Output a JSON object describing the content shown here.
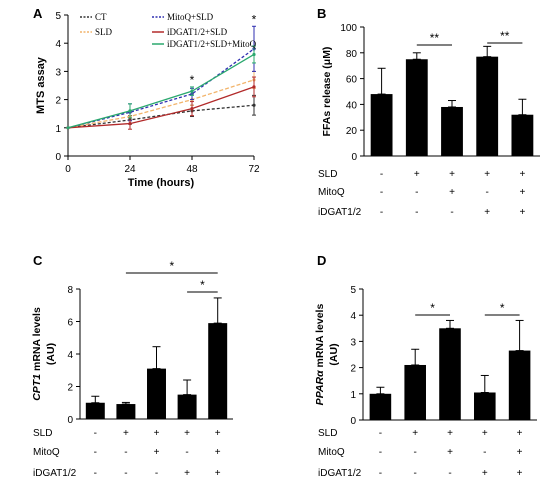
{
  "colors": {
    "ct": "#333333",
    "sld": "#f2b46b",
    "mitoq_sld": "#2f2fb0",
    "idgat_sld": "#b22a2a",
    "idgat_sld_mitoq": "#2aa86e",
    "bar": "#000000"
  },
  "chart_data": [
    {
      "panel": "A",
      "type": "line",
      "ylabel": "MTS assay",
      "xlabel": "Time (hours)",
      "x": [
        0,
        24,
        48,
        72
      ],
      "xticks": [
        "0",
        "24",
        "48",
        "72"
      ],
      "ylim": [
        0,
        5
      ],
      "yticks": [
        "0",
        "1",
        "2",
        "3",
        "4",
        "5"
      ],
      "xlim": [
        0,
        72
      ],
      "legend": {
        "placement": "top",
        "entries": [
          "CT",
          "SLD",
          "MitoQ+SLD",
          "iDGAT1/2+SLD",
          "iDGAT1/2+SLD+MitoQ"
        ]
      },
      "series": [
        {
          "name": "CT",
          "values": [
            1.0,
            1.28,
            1.6,
            1.8
          ],
          "err": [
            0,
            0.15,
            0.2,
            0.35
          ]
        },
        {
          "name": "SLD",
          "values": [
            1.0,
            1.4,
            2.0,
            2.7
          ],
          "err": [
            0,
            0.15,
            0.2,
            0.3
          ]
        },
        {
          "name": "MitoQ+SLD",
          "values": [
            1.0,
            1.55,
            2.2,
            3.8
          ],
          "err": [
            0,
            0.3,
            0.2,
            0.8
          ]
        },
        {
          "name": "iDGAT1/2+SLD",
          "values": [
            1.0,
            1.15,
            1.68,
            2.45
          ],
          "err": [
            0,
            0.2,
            0.25,
            0.35
          ]
        },
        {
          "name": "iDGAT1/2+SLD+MitoQ",
          "values": [
            1.0,
            1.6,
            2.3,
            3.6
          ],
          "err": [
            0,
            0.25,
            0.15,
            0.3
          ]
        }
      ],
      "annotations": [
        {
          "x": 48,
          "text": "*"
        },
        {
          "x": 72,
          "text": "*"
        }
      ]
    },
    {
      "panel": "B",
      "type": "bar",
      "ylabel": "FFAs release (μM)",
      "ylim": [
        0,
        100
      ],
      "yticks": [
        "0",
        "20",
        "40",
        "60",
        "80",
        "100"
      ],
      "values": [
        48,
        75,
        38,
        77,
        32
      ],
      "err": [
        20,
        5,
        5,
        8,
        12
      ],
      "conditions": [
        {
          "label": "SLD",
          "marks": [
            "-",
            "+",
            "+",
            "+",
            "+"
          ]
        },
        {
          "label": "MitoQ",
          "marks": [
            "-",
            "-",
            "+",
            "-",
            "+"
          ]
        },
        {
          "label": "iDGAT1/2",
          "marks": [
            "-",
            "-",
            "-",
            "+",
            "+"
          ]
        }
      ],
      "significance": [
        {
          "from": 1,
          "to": 2,
          "text": "**"
        },
        {
          "from": 3,
          "to": 4,
          "text": "**"
        }
      ]
    },
    {
      "panel": "C",
      "type": "bar",
      "ylabel_gene": "CPT1",
      "ylabel_rest": " mRNA levels",
      "ylabel_unit": "(AU)",
      "ylim": [
        0,
        8
      ],
      "yticks": [
        "0",
        "2",
        "4",
        "6",
        "8"
      ],
      "values": [
        1.0,
        0.92,
        3.1,
        1.5,
        5.9
      ],
      "err": [
        0.4,
        0.1,
        1.35,
        0.9,
        1.55
      ],
      "conditions": [
        {
          "label": "SLD",
          "marks": [
            "-",
            "+",
            "+",
            "+",
            "+"
          ]
        },
        {
          "label": "MitoQ",
          "marks": [
            "-",
            "-",
            "+",
            "-",
            "+"
          ]
        },
        {
          "label": "iDGAT1/2",
          "marks": [
            "-",
            "-",
            "-",
            "+",
            "+"
          ]
        }
      ],
      "significance": [
        {
          "from": 1,
          "to": 4,
          "text": "*"
        },
        {
          "from": 3,
          "to": 4,
          "text": "*"
        }
      ]
    },
    {
      "panel": "D",
      "type": "bar",
      "ylabel_gene": "PPARα",
      "ylabel_rest": " mRNA levels",
      "ylabel_unit": "(AU)",
      "ylim": [
        0,
        5
      ],
      "yticks": [
        "0",
        "1",
        "2",
        "3",
        "4",
        "5"
      ],
      "values": [
        1.0,
        2.1,
        3.5,
        1.05,
        2.65
      ],
      "err": [
        0.25,
        0.6,
        0.3,
        0.65,
        1.15
      ],
      "conditions": [
        {
          "label": "SLD",
          "marks": [
            "-",
            "+",
            "+",
            "+",
            "+"
          ]
        },
        {
          "label": "MitoQ",
          "marks": [
            "-",
            "-",
            "+",
            "-",
            "+"
          ]
        },
        {
          "label": "iDGAT1/2",
          "marks": [
            "-",
            "-",
            "-",
            "+",
            "+"
          ]
        }
      ],
      "significance": [
        {
          "from": 1,
          "to": 2,
          "text": "*"
        },
        {
          "from": 3,
          "to": 4,
          "text": "*"
        }
      ]
    }
  ]
}
